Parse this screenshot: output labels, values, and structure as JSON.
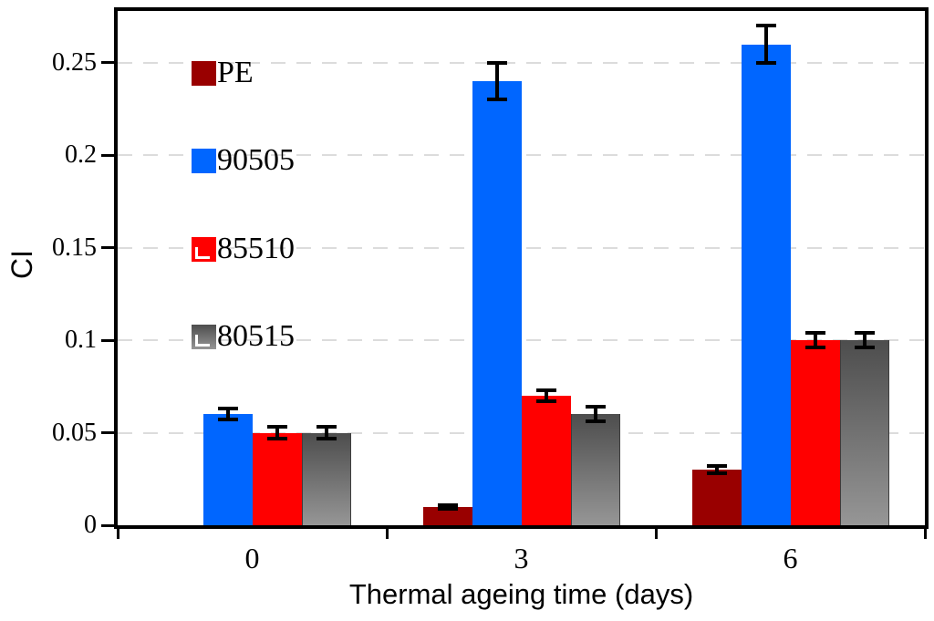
{
  "chart_data": {
    "type": "bar",
    "title": "",
    "xlabel": "Thermal ageing time (days)",
    "ylabel": "CI",
    "categories": [
      "0",
      "3",
      "6"
    ],
    "series": [
      {
        "name": "PE",
        "color": "#990000",
        "swatch": "solid",
        "values": [
          0,
          0.01,
          0.03
        ],
        "errors": [
          0,
          0.001,
          0.002
        ]
      },
      {
        "name": "90505",
        "color": "#0066ff",
        "swatch": "solid",
        "values": [
          0.06,
          0.24,
          0.26
        ],
        "errors": [
          0.003,
          0.01,
          0.01
        ]
      },
      {
        "name": "85510",
        "color": "#ff0000",
        "swatch": "corner-mark",
        "values": [
          0.05,
          0.07,
          0.1
        ],
        "errors": [
          0.003,
          0.003,
          0.004
        ]
      },
      {
        "name": "80515",
        "color": "gray-gradient",
        "gradient_top": "#4d4d4d",
        "gradient_bottom": "#969696",
        "border": "#3d3d3d",
        "swatch": "corner-mark",
        "values": [
          0.05,
          0.06,
          0.1
        ],
        "errors": [
          0.003,
          0.004,
          0.004
        ]
      }
    ],
    "y_ticks": [
      {
        "label": "0",
        "value": 0
      },
      {
        "label": "0.05",
        "value": 0.05
      },
      {
        "label": "0.1",
        "value": 0.1
      },
      {
        "label": "0.15",
        "value": 0.15
      },
      {
        "label": "0.2",
        "value": 0.2
      },
      {
        "label": "0.25",
        "value": 0.25
      }
    ],
    "ylim": [
      0,
      0.278
    ],
    "grid": "horizontal-dashed",
    "legend_position": "inside-top-left",
    "colors": {
      "axis": "#000000",
      "gridline": "#dcdcdc",
      "error_bar": "#000000",
      "background": "#ffffff"
    }
  }
}
